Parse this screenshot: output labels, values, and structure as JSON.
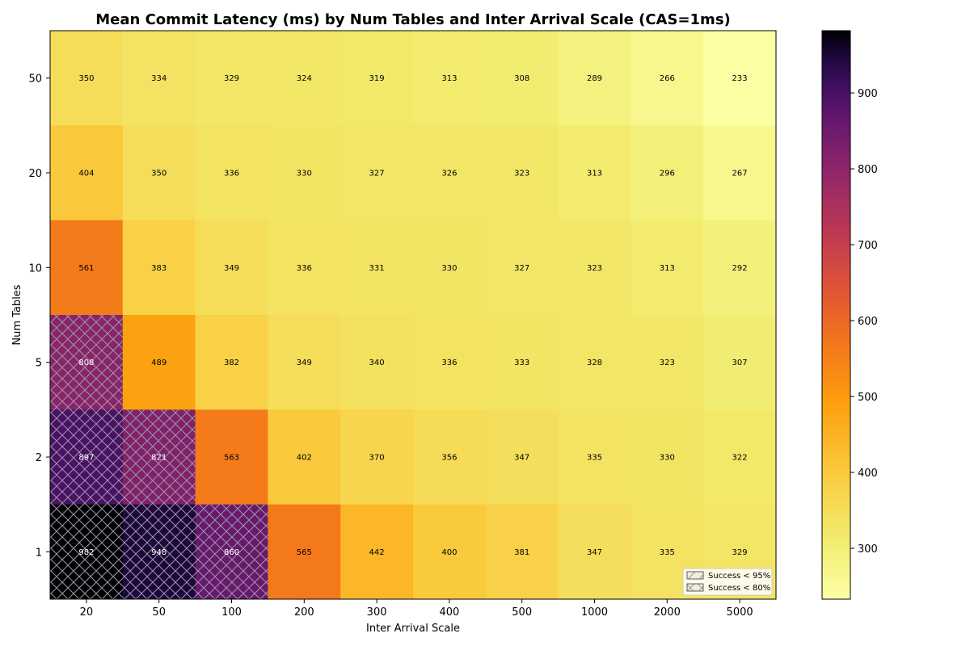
{
  "chart_data": {
    "type": "heatmap",
    "title": "Mean Commit Latency (ms) by Num Tables and Inter Arrival Scale (CAS=1ms)",
    "xlabel": "Inter Arrival Scale",
    "ylabel": "Num Tables",
    "x_categories": [
      "20",
      "50",
      "100",
      "200",
      "300",
      "400",
      "500",
      "1000",
      "2000",
      "5000"
    ],
    "y_categories": [
      "50",
      "20",
      "10",
      "5",
      "2",
      "1"
    ],
    "values": [
      [
        350,
        334,
        329,
        324,
        319,
        313,
        308,
        289,
        266,
        233
      ],
      [
        404,
        350,
        336,
        330,
        327,
        326,
        323,
        313,
        296,
        267
      ],
      [
        561,
        383,
        349,
        336,
        331,
        330,
        327,
        323,
        313,
        292
      ],
      [
        808,
        489,
        382,
        349,
        340,
        336,
        333,
        328,
        323,
        307
      ],
      [
        897,
        821,
        563,
        402,
        370,
        356,
        347,
        335,
        330,
        322
      ],
      [
        982,
        948,
        860,
        565,
        442,
        400,
        381,
        347,
        335,
        329
      ]
    ],
    "hatch_light": [
      [
        0,
        0,
        0,
        0,
        0,
        0,
        0,
        0,
        0,
        0
      ],
      [
        0,
        0,
        0,
        0,
        0,
        0,
        0,
        0,
        0,
        0
      ],
      [
        0,
        0,
        0,
        0,
        0,
        0,
        0,
        0,
        0,
        0
      ],
      [
        0,
        0,
        0,
        0,
        0,
        0,
        0,
        0,
        0,
        0
      ],
      [
        0,
        0,
        0,
        0,
        0,
        0,
        0,
        0,
        0,
        0
      ],
      [
        0,
        0,
        0,
        0,
        0,
        0,
        0,
        0,
        0,
        0
      ]
    ],
    "hatch_heavy": [
      [
        0,
        0,
        0,
        0,
        0,
        0,
        0,
        0,
        0,
        0
      ],
      [
        0,
        0,
        0,
        0,
        0,
        0,
        0,
        0,
        0,
        0
      ],
      [
        0,
        0,
        0,
        0,
        0,
        0,
        0,
        0,
        0,
        0
      ],
      [
        1,
        0,
        0,
        0,
        0,
        0,
        0,
        0,
        0,
        0
      ],
      [
        1,
        1,
        0,
        0,
        0,
        0,
        0,
        0,
        0,
        0
      ],
      [
        1,
        1,
        1,
        0,
        0,
        0,
        0,
        0,
        0,
        0
      ]
    ],
    "colormap": "inferno_r",
    "vmin": 233,
    "vmax": 982,
    "colorbar_ticks": [
      300,
      400,
      500,
      600,
      700,
      800,
      900
    ],
    "legend": {
      "position": "bottom-right",
      "entries": [
        "Success < 95%",
        "Success < 80%"
      ]
    }
  }
}
